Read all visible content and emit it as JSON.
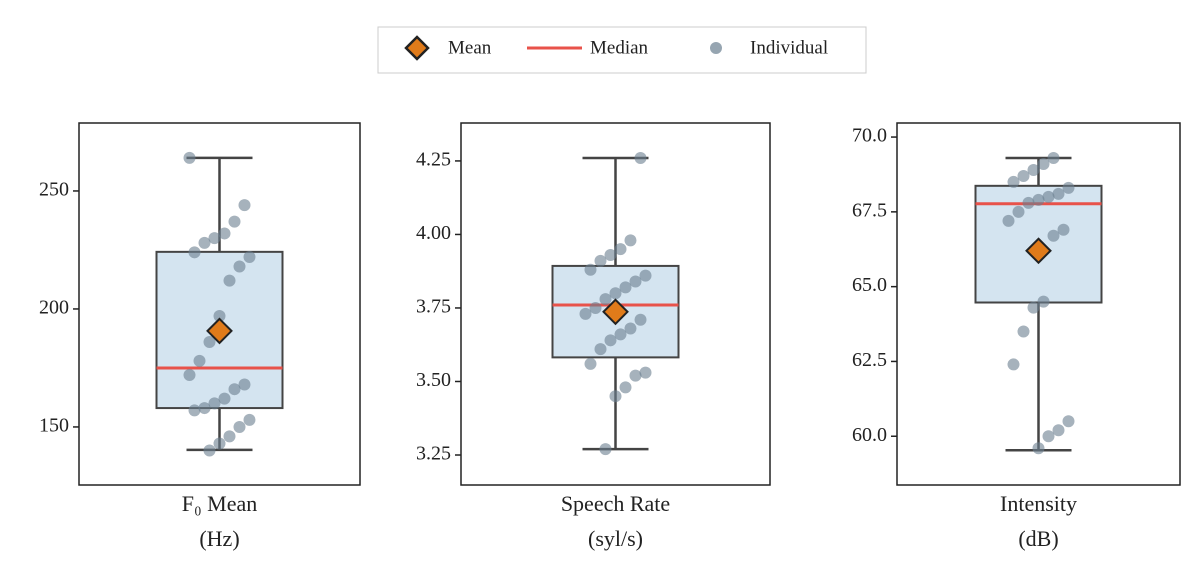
{
  "legend": {
    "entries": [
      {
        "name": "Mean",
        "color": "#e07b1a"
      },
      {
        "name": "Median",
        "color": "#e8524a"
      },
      {
        "name": "Individual",
        "color": "#6a7f90"
      }
    ]
  },
  "chart_data": [
    {
      "type": "box",
      "xlabel": [
        "F₀ Mean",
        "(Hz)"
      ],
      "ylim": [
        125.4,
        278.8
      ],
      "yticks": [
        150,
        200,
        250
      ],
      "box": {
        "whisker_low": 140.3,
        "q1": 158,
        "median": 175,
        "q3": 224.2,
        "whisker_high": 264,
        "mean": 190.7
      },
      "points": [
        264,
        244,
        237,
        232,
        230,
        228,
        224,
        222,
        218,
        212,
        197,
        186,
        178,
        172,
        168,
        166,
        162,
        160,
        158,
        157,
        153,
        150,
        146,
        143,
        140
      ],
      "box_color": "#d4e4f0",
      "median_color": "#e8524a",
      "mean_color": "#e07b1a",
      "point_color": "#6a7f90"
    },
    {
      "type": "box",
      "xlabel": [
        "Speech Rate",
        "(syl/s)"
      ],
      "ylim": [
        3.148,
        4.379
      ],
      "yticks": [
        {
          "value": 3.25,
          "label": "3.25"
        },
        {
          "value": 3.5,
          "label": "3.50"
        },
        {
          "value": 3.75,
          "label": "3.75"
        },
        {
          "value": 4,
          "label": "4.00"
        },
        {
          "value": 4.25,
          "label": "4.25"
        }
      ],
      "box": {
        "whisker_low": 3.27,
        "q1": 3.582,
        "median": 3.76,
        "q3": 3.893,
        "whisker_high": 4.26,
        "mean": 3.737
      },
      "points": [
        4.26,
        3.98,
        3.95,
        3.93,
        3.91,
        3.88,
        3.86,
        3.84,
        3.82,
        3.8,
        3.78,
        3.75,
        3.73,
        3.71,
        3.68,
        3.66,
        3.64,
        3.61,
        3.56,
        3.53,
        3.52,
        3.48,
        3.45,
        3.27
      ],
      "box_color": "#d4e4f0",
      "median_color": "#e8524a",
      "mean_color": "#e07b1a",
      "point_color": "#6a7f90"
    },
    {
      "type": "box",
      "xlabel": [
        "Intensity",
        "(dB)"
      ],
      "ylim": [
        58.37,
        70.47
      ],
      "yticks": [
        {
          "value": 60,
          "label": "60.0"
        },
        62.5,
        {
          "value": 65,
          "label": "65.0"
        },
        67.5,
        {
          "value": 70,
          "label": "70.0"
        }
      ],
      "box": {
        "whisker_low": 59.53,
        "q1": 64.47,
        "median": 67.77,
        "q3": 68.37,
        "whisker_high": 69.3,
        "mean": 66.2
      },
      "points": [
        69.3,
        69.1,
        68.9,
        68.7,
        68.5,
        68.3,
        68.1,
        68,
        67.9,
        67.8,
        67.5,
        67.2,
        66.9,
        66.7,
        64.5,
        64.3,
        63.5,
        62.4,
        60.5,
        60.2,
        60,
        59.6
      ],
      "box_color": "#d4e4f0",
      "median_color": "#e8524a",
      "mean_color": "#e07b1a",
      "point_color": "#6a7f90"
    }
  ]
}
